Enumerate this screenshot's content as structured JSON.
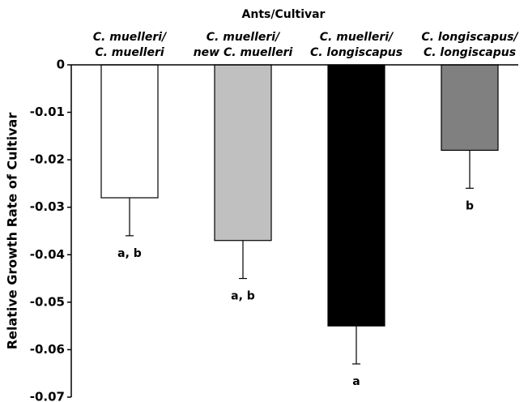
{
  "chart_data": {
    "type": "bar",
    "title": "Ants/Cultivar",
    "ylabel": "Relative Growth Rate of Cultivar",
    "categories": [
      [
        "C. muelleri/",
        "C. muelleri"
      ],
      [
        "C. muelleri/",
        "new C. muelleri"
      ],
      [
        "C. muelleri/",
        "C. longiscapus"
      ],
      [
        "C. longiscapus/",
        "C. longiscapus"
      ]
    ],
    "values": [
      -0.028,
      -0.037,
      -0.055,
      -0.018
    ],
    "errors": [
      0.008,
      0.008,
      0.008,
      0.008
    ],
    "colors": [
      "#ffffff",
      "#c0c0c0",
      "#000000",
      "#808080"
    ],
    "annotations": [
      "a, b",
      "a, b",
      "a",
      "b"
    ],
    "ylim": [
      -0.07,
      0
    ],
    "yticks": [
      0,
      -0.01,
      -0.02,
      -0.03,
      -0.04,
      -0.05,
      -0.06,
      -0.07
    ]
  }
}
